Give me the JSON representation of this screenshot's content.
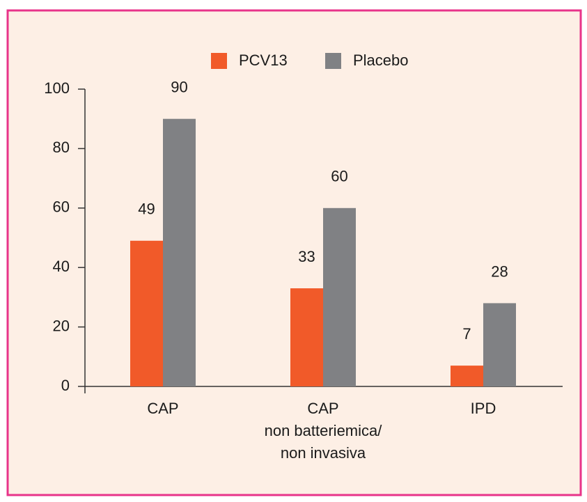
{
  "chart_data": {
    "type": "bar",
    "categories": [
      [
        "CAP"
      ],
      [
        "CAP",
        "non batteriemica/",
        "non invasiva"
      ],
      [
        "IPD"
      ]
    ],
    "series": [
      {
        "name": "PCV13",
        "color": "#f15a29",
        "values": [
          49,
          33,
          7
        ]
      },
      {
        "name": "Placebo",
        "color": "#808184",
        "values": [
          90,
          60,
          28
        ]
      }
    ],
    "ylim": [
      0,
      100
    ],
    "yticks": [
      0,
      20,
      40,
      60,
      80,
      100
    ],
    "grid": false
  }
}
